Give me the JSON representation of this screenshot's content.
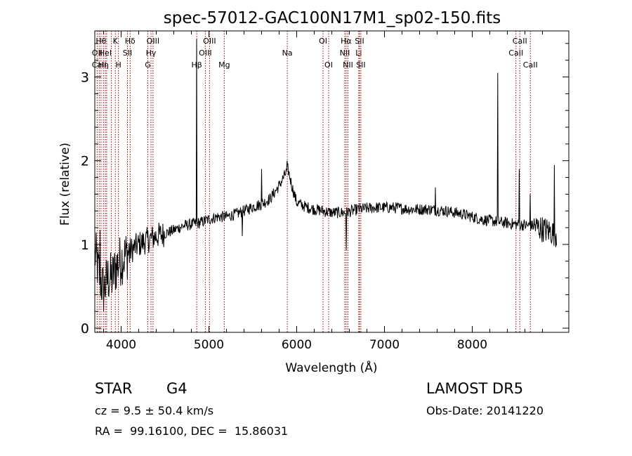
{
  "chart_data": {
    "type": "line",
    "title": "spec-57012-GAC100N17M1_sp02-150.fits",
    "xlabel": "Wavelength (Å)",
    "ylabel": "Flux (relative)",
    "xlim": [
      3700,
      9100
    ],
    "ylim": [
      -0.05,
      3.55
    ],
    "x_ticks": [
      4000,
      5000,
      6000,
      7000,
      8000
    ],
    "y_ticks": [
      0,
      1,
      2,
      3
    ],
    "x_tick_labels": [
      "4000",
      "5000",
      "6000",
      "7000",
      "8000"
    ],
    "y_tick_labels": [
      "0",
      "1",
      "2",
      "3"
    ],
    "grid": false,
    "line_color": "#000000",
    "line_marker_color": "#990000",
    "spectrum_anchors": [
      [
        3700,
        0.9
      ],
      [
        3760,
        0.6
      ],
      [
        3800,
        0.45
      ],
      [
        3850,
        0.6
      ],
      [
        3900,
        0.6
      ],
      [
        3950,
        0.75
      ],
      [
        4000,
        0.82
      ],
      [
        4100,
        0.92
      ],
      [
        4200,
        1.0
      ],
      [
        4300,
        1.05
      ],
      [
        4400,
        1.1
      ],
      [
        4500,
        1.13
      ],
      [
        4600,
        1.17
      ],
      [
        4700,
        1.22
      ],
      [
        4800,
        1.24
      ],
      [
        4900,
        1.26
      ],
      [
        5000,
        1.3
      ],
      [
        5100,
        1.33
      ],
      [
        5200,
        1.33
      ],
      [
        5300,
        1.36
      ],
      [
        5400,
        1.4
      ],
      [
        5500,
        1.45
      ],
      [
        5600,
        1.48
      ],
      [
        5700,
        1.55
      ],
      [
        5800,
        1.7
      ],
      [
        5850,
        1.8
      ],
      [
        5900,
        1.9
      ],
      [
        5950,
        1.68
      ],
      [
        6000,
        1.5
      ],
      [
        6100,
        1.45
      ],
      [
        6200,
        1.42
      ],
      [
        6300,
        1.4
      ],
      [
        6400,
        1.38
      ],
      [
        6500,
        1.38
      ],
      [
        6560,
        1.38
      ],
      [
        6700,
        1.42
      ],
      [
        6900,
        1.44
      ],
      [
        7100,
        1.44
      ],
      [
        7300,
        1.42
      ],
      [
        7500,
        1.42
      ],
      [
        7700,
        1.4
      ],
      [
        7900,
        1.36
      ],
      [
        8100,
        1.3
      ],
      [
        8300,
        1.27
      ],
      [
        8500,
        1.24
      ],
      [
        8700,
        1.22
      ],
      [
        8900,
        1.15
      ],
      [
        9100,
        1.05
      ]
    ],
    "spectrum_features": [
      {
        "x": 4861,
        "value": 3.45
      },
      {
        "x": 8290,
        "value": 3.05
      },
      {
        "x": 8935,
        "value": 1.95
      },
      {
        "x": 3760,
        "value": 1.17
      },
      {
        "x": 5890,
        "value": 2.0
      },
      {
        "x": 5598,
        "value": 1.9
      },
      {
        "x": 7580,
        "value": 1.68
      },
      {
        "x": 6563,
        "value": 0.93
      },
      {
        "x": 5380,
        "value": 1.1
      },
      {
        "x": 8535,
        "value": 1.9
      },
      {
        "x": 8662,
        "value": 1.6
      }
    ],
    "line_markers": [
      {
        "x": 3727,
        "label": "OII",
        "row": 1
      },
      {
        "x": 3750,
        "label": "CaII",
        "row": 2
      },
      {
        "x": 3771,
        "label": "Hθ",
        "row": 0
      },
      {
        "x": 3798,
        "label": "Hη",
        "row": 2
      },
      {
        "x": 3820,
        "label": "HeI",
        "row": 1
      },
      {
        "x": 3835,
        "label": "",
        "row": 0
      },
      {
        "x": 3889,
        "label": "",
        "row": 0
      },
      {
        "x": 3934,
        "label": "K",
        "row": 0
      },
      {
        "x": 3969,
        "label": "H",
        "row": 2
      },
      {
        "x": 4072,
        "label": "SII",
        "row": 1
      },
      {
        "x": 4102,
        "label": "Hδ",
        "row": 0
      },
      {
        "x": 4304,
        "label": "G",
        "row": 2
      },
      {
        "x": 4340,
        "label": "Hγ",
        "row": 1
      },
      {
        "x": 4363,
        "label": "OIII",
        "row": 0
      },
      {
        "x": 4861,
        "label": "Hβ",
        "row": 2
      },
      {
        "x": 4959,
        "label": "OIII",
        "row": 1
      },
      {
        "x": 5007,
        "label": "OIII",
        "row": 0
      },
      {
        "x": 5175,
        "label": "Mg",
        "row": 2
      },
      {
        "x": 5893,
        "label": "Na",
        "row": 1
      },
      {
        "x": 6300,
        "label": "OI",
        "row": 0
      },
      {
        "x": 6364,
        "label": "OI",
        "row": 2
      },
      {
        "x": 6548,
        "label": "NII",
        "row": 1
      },
      {
        "x": 6563,
        "label": "Hα",
        "row": 0
      },
      {
        "x": 6584,
        "label": "NII",
        "row": 2
      },
      {
        "x": 6707,
        "label": "Li",
        "row": 1
      },
      {
        "x": 6716,
        "label": "SII",
        "row": 0
      },
      {
        "x": 6731,
        "label": "SII",
        "row": 2
      },
      {
        "x": 8498,
        "label": "CaII",
        "row": 1
      },
      {
        "x": 8542,
        "label": "CaII",
        "row": 0
      },
      {
        "x": 8662,
        "label": "CaII",
        "row": 2
      }
    ]
  },
  "info": {
    "object_class": "STAR",
    "subclass": "G4",
    "survey": "LAMOST DR5",
    "redshift": "cz = 9.5 ± 50.4 km/s",
    "obs_date": "Obs-Date: 20141220",
    "coords": "RA =  99.16100, DEC =  15.86031"
  }
}
